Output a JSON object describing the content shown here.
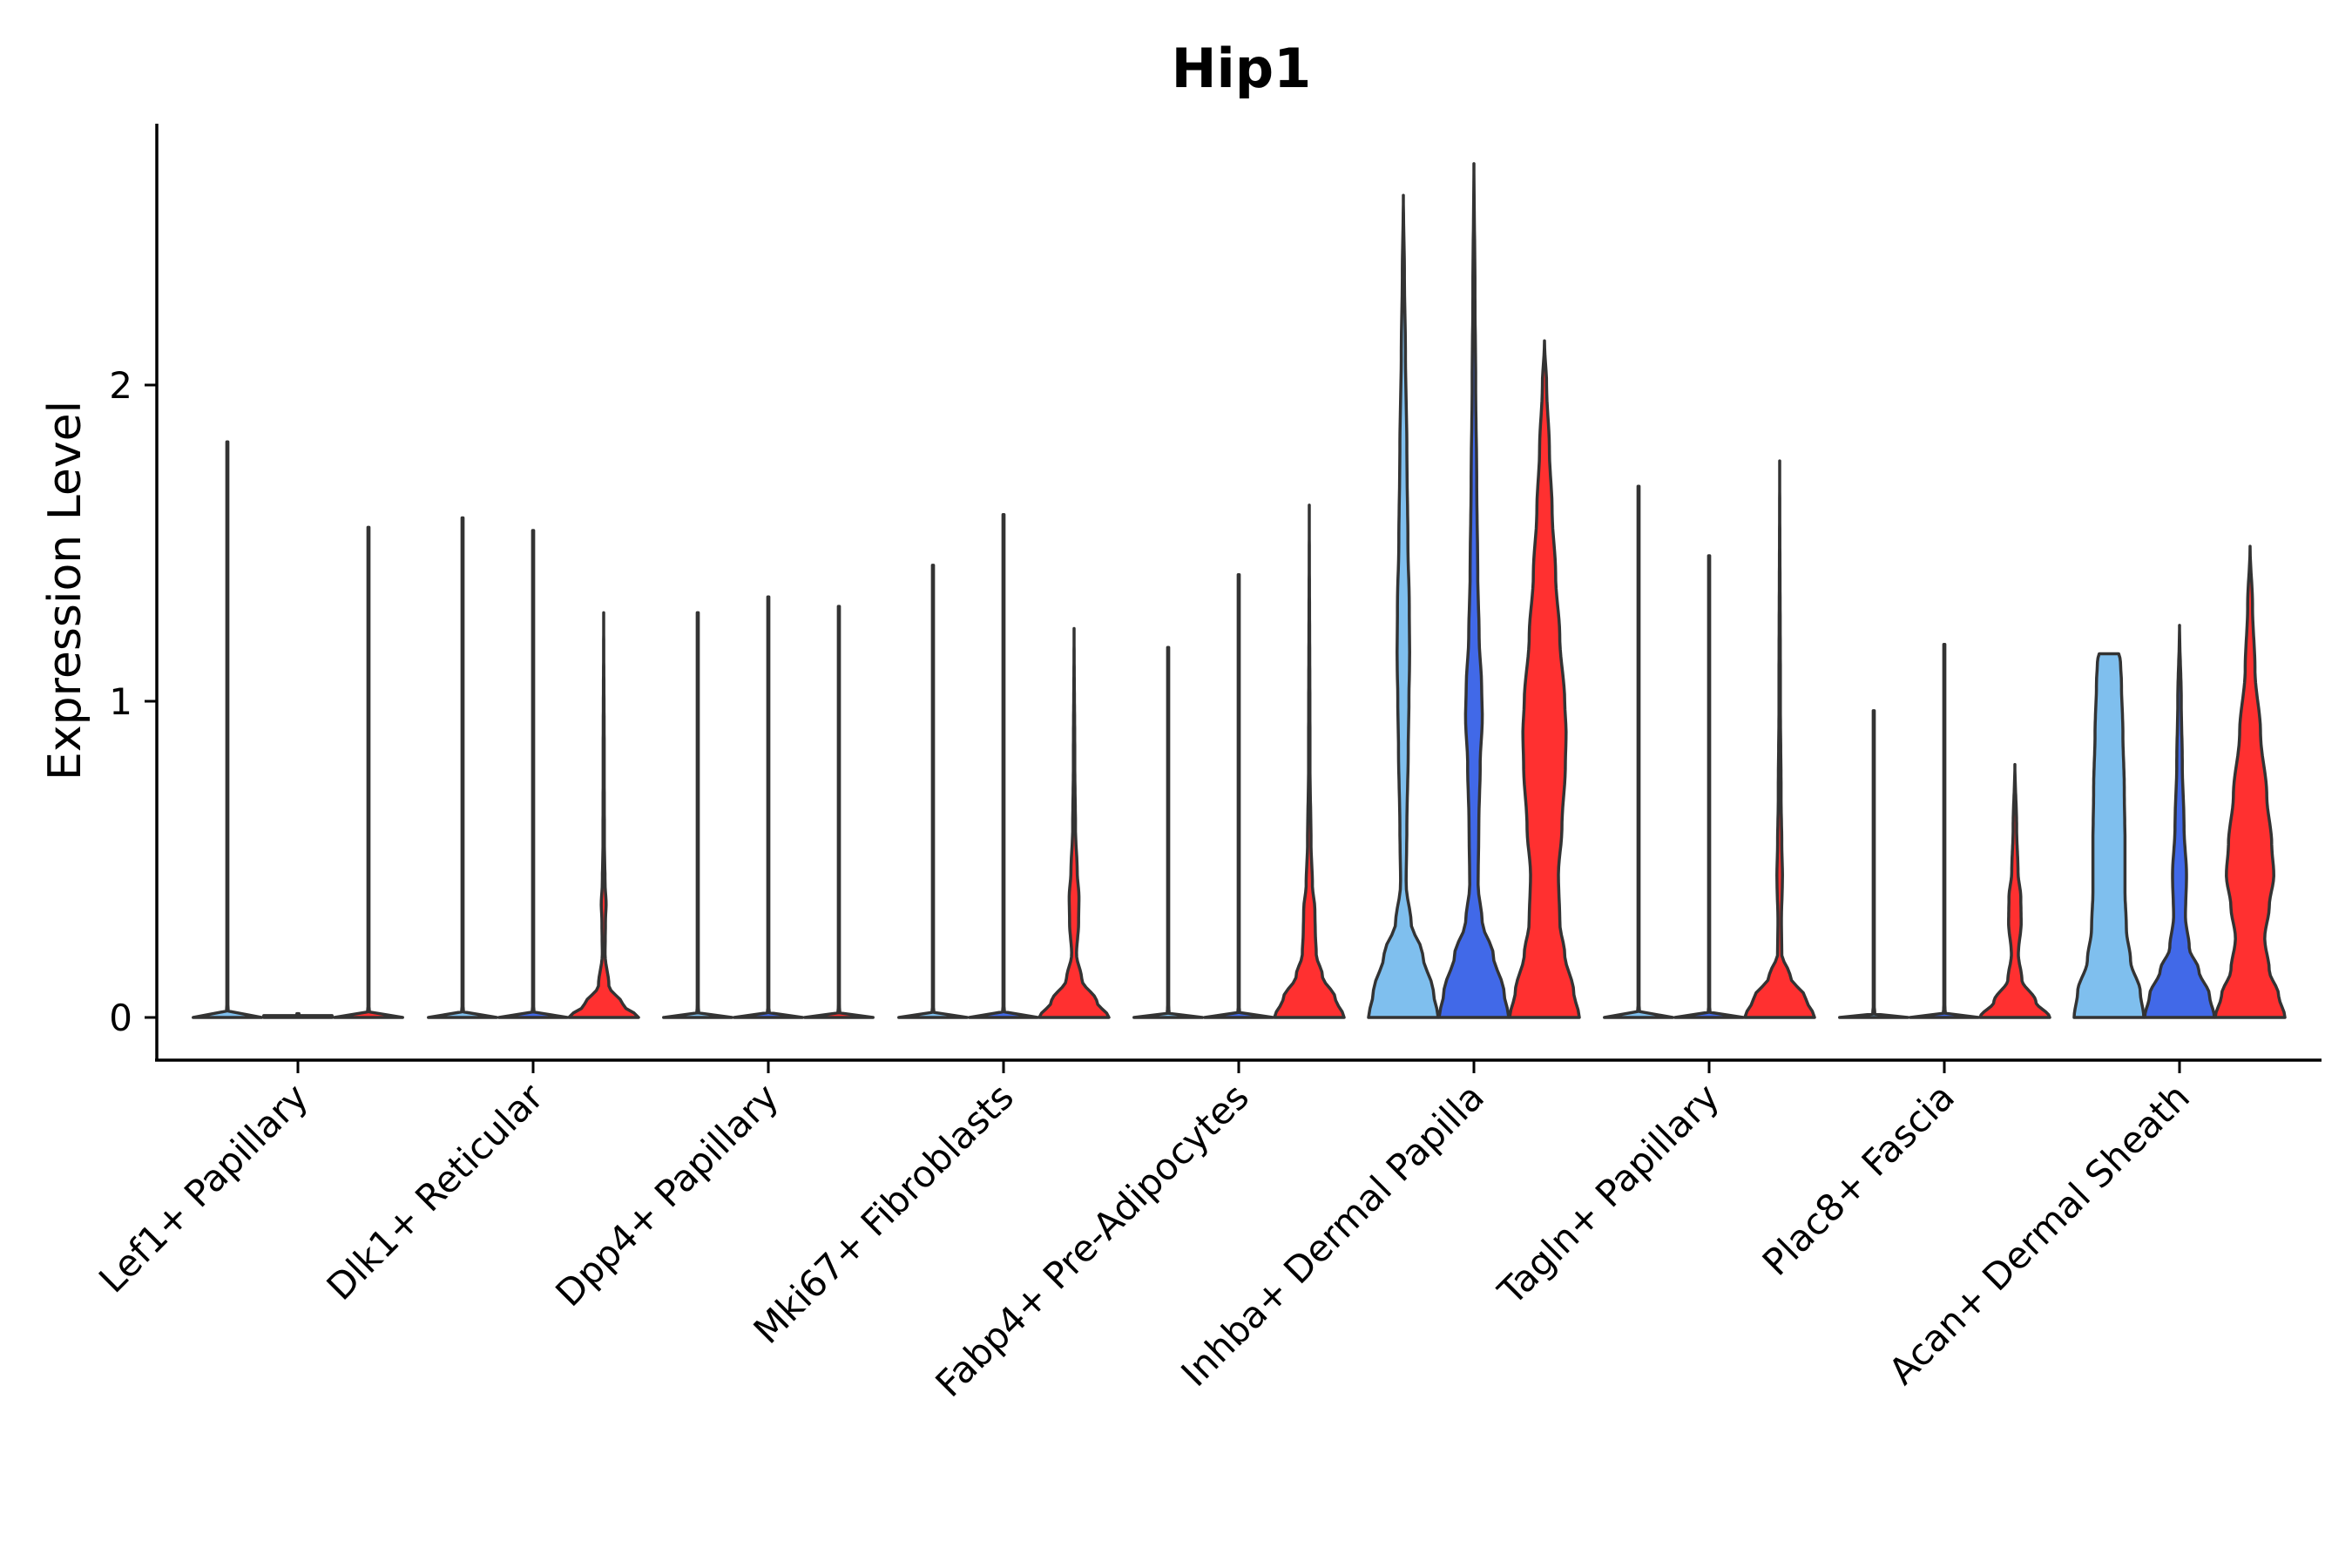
{
  "chart_data": {
    "type": "violin",
    "title": "Hip1",
    "xlabel": "",
    "ylabel": "Expression Level",
    "ylim": [
      -0.14,
      2.82
    ],
    "yticks": [
      0,
      1,
      2
    ],
    "categories": [
      "Lef1+ Papillary",
      "Dlk1+ Reticular",
      "Dpp4+ Papillary",
      "Mki67+ Fibroblasts",
      "Fabp4+ Pre-Adipocytes",
      "Inhba+ Dermal Papilla",
      "Tagln+ Papillary",
      "Plac8+ Fascia",
      "Acan+ Dermal Sheath"
    ],
    "groups": [
      {
        "name": "group-1",
        "color": "#7fbfee"
      },
      {
        "name": "group-2",
        "color": "#4169e8"
      },
      {
        "name": "group-3",
        "color": "#ff3030"
      }
    ],
    "violins": [
      {
        "category": 0,
        "group": 0,
        "max": 1.82,
        "width": 0.02,
        "profile": [
          [
            0,
            0.9
          ],
          [
            0.01,
            1
          ],
          [
            0.05,
            0.02
          ],
          [
            1.82,
            0
          ]
        ]
      },
      {
        "category": 0,
        "group": 1,
        "max": 0.0,
        "width": 0.02,
        "profile": [
          [
            0,
            1
          ],
          [
            0.01,
            1
          ]
        ]
      },
      {
        "category": 0,
        "group": 2,
        "max": 1.55,
        "width": 0.02,
        "profile": [
          [
            0,
            0.9
          ],
          [
            0.01,
            1
          ],
          [
            0.05,
            0.02
          ],
          [
            1.55,
            0
          ]
        ]
      },
      {
        "category": 1,
        "group": 0,
        "max": 1.58,
        "width": 0.02,
        "profile": [
          [
            0,
            0.9
          ],
          [
            0.01,
            1
          ],
          [
            0.05,
            0.02
          ],
          [
            1.58,
            0
          ]
        ]
      },
      {
        "category": 1,
        "group": 1,
        "max": 1.54,
        "width": 0.02,
        "profile": [
          [
            0,
            0.9
          ],
          [
            0.01,
            1
          ],
          [
            0.05,
            0.02
          ],
          [
            1.54,
            0
          ]
        ]
      },
      {
        "category": 1,
        "group": 2,
        "max": 1.28,
        "width": 1.0,
        "profile": [
          [
            0,
            1
          ],
          [
            0.04,
            0.55
          ],
          [
            0.1,
            0.15
          ],
          [
            0.2,
            0.04
          ],
          [
            0.3,
            0.05
          ],
          [
            0.36,
            0.07
          ],
          [
            0.42,
            0.04
          ],
          [
            0.55,
            0.02
          ],
          [
            0.8,
            0.015
          ],
          [
            1.28,
            0
          ]
        ]
      },
      {
        "category": 2,
        "group": 0,
        "max": 1.28,
        "width": 0.02,
        "profile": [
          [
            0,
            0.9
          ],
          [
            0.01,
            1
          ],
          [
            0.05,
            0.02
          ],
          [
            1.28,
            0
          ]
        ]
      },
      {
        "category": 2,
        "group": 1,
        "max": 1.33,
        "width": 0.02,
        "profile": [
          [
            0,
            0.9
          ],
          [
            0.01,
            1
          ],
          [
            0.05,
            0.02
          ],
          [
            1.33,
            0
          ]
        ]
      },
      {
        "category": 2,
        "group": 2,
        "max": 1.3,
        "width": 0.02,
        "profile": [
          [
            0,
            0.9
          ],
          [
            0.01,
            1
          ],
          [
            0.05,
            0.02
          ],
          [
            1.3,
            0
          ]
        ]
      },
      {
        "category": 3,
        "group": 0,
        "max": 1.43,
        "width": 0.02,
        "profile": [
          [
            0,
            0.9
          ],
          [
            0.01,
            1
          ],
          [
            0.05,
            0.02
          ],
          [
            1.43,
            0
          ]
        ]
      },
      {
        "category": 3,
        "group": 1,
        "max": 1.59,
        "width": 0.02,
        "profile": [
          [
            0,
            0.9
          ],
          [
            0.01,
            1
          ],
          [
            0.05,
            0.02
          ],
          [
            1.59,
            0
          ]
        ]
      },
      {
        "category": 3,
        "group": 2,
        "max": 1.23,
        "width": 1.0,
        "profile": [
          [
            0,
            1
          ],
          [
            0.05,
            0.65
          ],
          [
            0.12,
            0.22
          ],
          [
            0.2,
            0.07
          ],
          [
            0.3,
            0.13
          ],
          [
            0.38,
            0.14
          ],
          [
            0.46,
            0.09
          ],
          [
            0.6,
            0.04
          ],
          [
            0.8,
            0.02
          ],
          [
            1.23,
            0
          ]
        ]
      },
      {
        "category": 4,
        "group": 0,
        "max": 1.17,
        "width": 0.02,
        "profile": [
          [
            0,
            0.9
          ],
          [
            0.01,
            1
          ],
          [
            0.05,
            0.02
          ],
          [
            1.17,
            0
          ]
        ]
      },
      {
        "category": 4,
        "group": 1,
        "max": 1.4,
        "width": 0.02,
        "profile": [
          [
            0,
            0.9
          ],
          [
            0.01,
            1
          ],
          [
            0.05,
            0.02
          ],
          [
            1.4,
            0
          ]
        ]
      },
      {
        "category": 4,
        "group": 2,
        "max": 1.62,
        "width": 1.0,
        "profile": [
          [
            0,
            1
          ],
          [
            0.06,
            0.75
          ],
          [
            0.13,
            0.38
          ],
          [
            0.2,
            0.2
          ],
          [
            0.28,
            0.17
          ],
          [
            0.34,
            0.16
          ],
          [
            0.42,
            0.09
          ],
          [
            0.55,
            0.05
          ],
          [
            0.8,
            0.02
          ],
          [
            1.62,
            0
          ]
        ]
      },
      {
        "category": 5,
        "group": 0,
        "max": 2.6,
        "width": 1.0,
        "profile": [
          [
            0,
            1
          ],
          [
            0.08,
            0.86
          ],
          [
            0.2,
            0.55
          ],
          [
            0.3,
            0.22
          ],
          [
            0.42,
            0.08
          ],
          [
            0.6,
            0.1
          ],
          [
            0.85,
            0.14
          ],
          [
            1.0,
            0.16
          ],
          [
            1.15,
            0.18
          ],
          [
            1.3,
            0.17
          ],
          [
            1.5,
            0.13
          ],
          [
            1.8,
            0.1
          ],
          [
            2.1,
            0.06
          ],
          [
            2.35,
            0.03
          ],
          [
            2.6,
            0
          ]
        ]
      },
      {
        "category": 5,
        "group": 1,
        "max": 2.7,
        "width": 1.0,
        "profile": [
          [
            0,
            1
          ],
          [
            0.08,
            0.86
          ],
          [
            0.2,
            0.55
          ],
          [
            0.3,
            0.24
          ],
          [
            0.42,
            0.12
          ],
          [
            0.6,
            0.14
          ],
          [
            0.8,
            0.18
          ],
          [
            0.95,
            0.24
          ],
          [
            1.05,
            0.22
          ],
          [
            1.2,
            0.15
          ],
          [
            1.4,
            0.11
          ],
          [
            1.7,
            0.08
          ],
          [
            2.0,
            0.05
          ],
          [
            2.3,
            0.03
          ],
          [
            2.7,
            0
          ]
        ]
      },
      {
        "category": 5,
        "group": 2,
        "max": 2.14,
        "width": 1.0,
        "profile": [
          [
            0,
            1
          ],
          [
            0.08,
            0.84
          ],
          [
            0.2,
            0.58
          ],
          [
            0.3,
            0.44
          ],
          [
            0.45,
            0.4
          ],
          [
            0.6,
            0.5
          ],
          [
            0.8,
            0.6
          ],
          [
            0.9,
            0.62
          ],
          [
            1.0,
            0.58
          ],
          [
            1.2,
            0.44
          ],
          [
            1.4,
            0.32
          ],
          [
            1.6,
            0.22
          ],
          [
            1.8,
            0.14
          ],
          [
            2.0,
            0.06
          ],
          [
            2.14,
            0
          ]
        ]
      },
      {
        "category": 6,
        "group": 0,
        "max": 1.68,
        "width": 0.02,
        "profile": [
          [
            0,
            0.9
          ],
          [
            0.01,
            1
          ],
          [
            0.05,
            0.02
          ],
          [
            1.68,
            0
          ]
        ]
      },
      {
        "category": 6,
        "group": 1,
        "max": 1.46,
        "width": 0.02,
        "profile": [
          [
            0,
            0.9
          ],
          [
            0.01,
            1
          ],
          [
            0.05,
            0.02
          ],
          [
            1.46,
            0
          ]
        ]
      },
      {
        "category": 6,
        "group": 2,
        "max": 1.76,
        "width": 1.0,
        "profile": [
          [
            0,
            1
          ],
          [
            0.06,
            0.75
          ],
          [
            0.13,
            0.3
          ],
          [
            0.2,
            0.06
          ],
          [
            0.3,
            0.05
          ],
          [
            0.45,
            0.08
          ],
          [
            0.55,
            0.06
          ],
          [
            0.7,
            0.04
          ],
          [
            1.0,
            0.02
          ],
          [
            1.76,
            0
          ]
        ]
      },
      {
        "category": 7,
        "group": 0,
        "max": 0.97,
        "width": 0.02,
        "profile": [
          [
            0,
            0.9
          ],
          [
            0.01,
            1
          ],
          [
            0.05,
            0.02
          ],
          [
            0.97,
            0
          ]
        ]
      },
      {
        "category": 7,
        "group": 1,
        "max": 1.18,
        "width": 0.02,
        "profile": [
          [
            0,
            0.9
          ],
          [
            0.01,
            1
          ],
          [
            0.05,
            0.02
          ],
          [
            1.18,
            0
          ]
        ]
      },
      {
        "category": 7,
        "group": 2,
        "max": 0.8,
        "width": 1.0,
        "profile": [
          [
            0,
            1
          ],
          [
            0.05,
            0.6
          ],
          [
            0.12,
            0.2
          ],
          [
            0.2,
            0.1
          ],
          [
            0.3,
            0.18
          ],
          [
            0.38,
            0.17
          ],
          [
            0.46,
            0.09
          ],
          [
            0.6,
            0.05
          ],
          [
            0.8,
            0
          ]
        ]
      },
      {
        "category": 8,
        "group": 0,
        "max": 1.15,
        "width": 1.0,
        "profile": [
          [
            0,
            1
          ],
          [
            0.08,
            0.9
          ],
          [
            0.18,
            0.62
          ],
          [
            0.28,
            0.5
          ],
          [
            0.4,
            0.46
          ],
          [
            0.55,
            0.46
          ],
          [
            0.72,
            0.44
          ],
          [
            0.9,
            0.4
          ],
          [
            1.05,
            0.36
          ],
          [
            1.13,
            0.33
          ],
          [
            1.15,
            0.28
          ]
        ]
      },
      {
        "category": 8,
        "group": 1,
        "max": 1.24,
        "width": 1.0,
        "profile": [
          [
            0,
            1
          ],
          [
            0.07,
            0.86
          ],
          [
            0.15,
            0.55
          ],
          [
            0.22,
            0.28
          ],
          [
            0.32,
            0.17
          ],
          [
            0.45,
            0.2
          ],
          [
            0.6,
            0.13
          ],
          [
            0.8,
            0.08
          ],
          [
            1.0,
            0.05
          ],
          [
            1.24,
            0
          ]
        ]
      },
      {
        "category": 8,
        "group": 2,
        "max": 1.49,
        "width": 1.0,
        "profile": [
          [
            0,
            1
          ],
          [
            0.07,
            0.82
          ],
          [
            0.15,
            0.55
          ],
          [
            0.25,
            0.42
          ],
          [
            0.35,
            0.55
          ],
          [
            0.45,
            0.68
          ],
          [
            0.55,
            0.62
          ],
          [
            0.7,
            0.48
          ],
          [
            0.9,
            0.3
          ],
          [
            1.1,
            0.14
          ],
          [
            1.3,
            0.07
          ],
          [
            1.49,
            0
          ]
        ]
      }
    ]
  }
}
